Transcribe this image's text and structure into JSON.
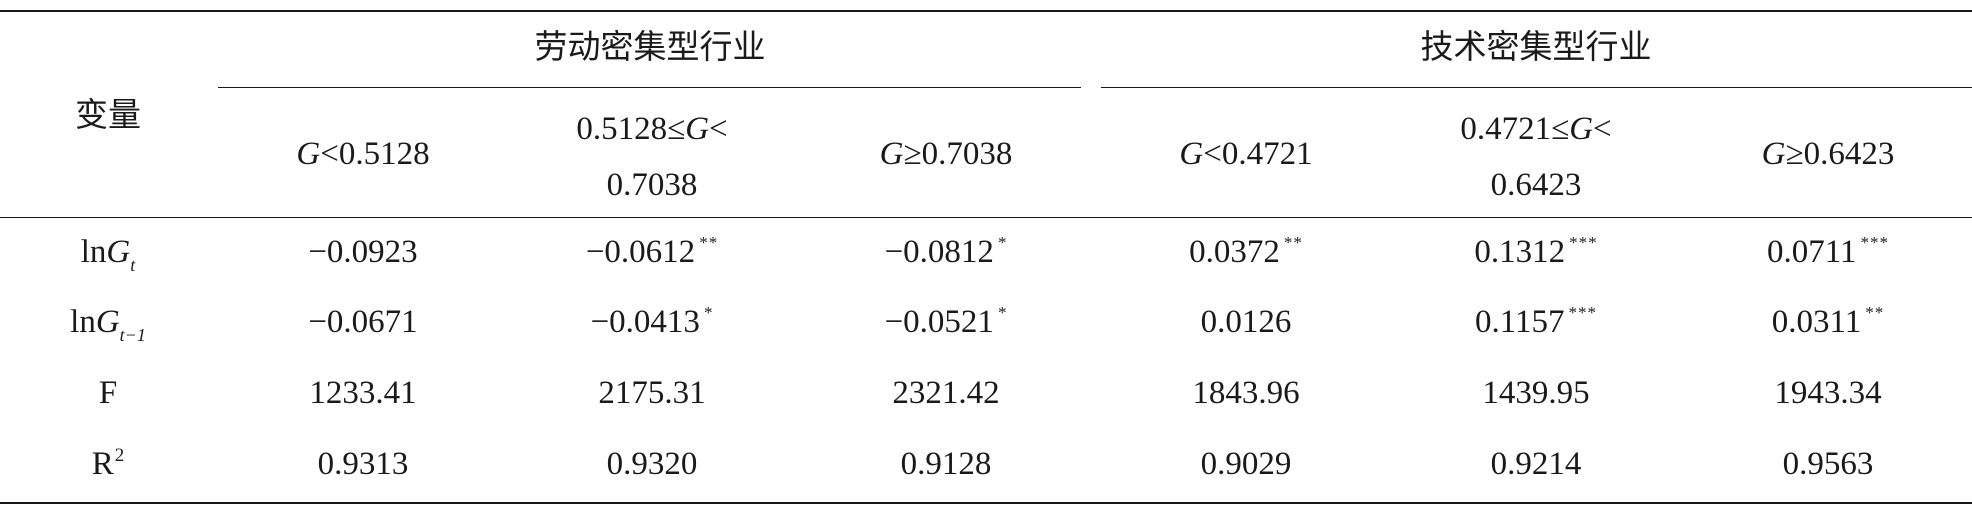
{
  "table": {
    "var_header": "变量",
    "groups": [
      "劳动密集型行业",
      "技术密集型行业"
    ],
    "columns": [
      {
        "l1": "G<0.5128",
        "l2": ""
      },
      {
        "l1": "0.5128≤G<",
        "l2": "0.7038"
      },
      {
        "l1": "G≥0.7038",
        "l2": ""
      },
      {
        "l1": "G<0.4721",
        "l2": ""
      },
      {
        "l1": "0.4721≤G<",
        "l2": "0.6423"
      },
      {
        "l1": "G≥0.6423",
        "l2": ""
      }
    ],
    "rows": [
      {
        "label_base": "lnG",
        "label_sub": "t",
        "cells": [
          {
            "v": "−0.0923",
            "s": ""
          },
          {
            "v": "−0.0612",
            "s": "**"
          },
          {
            "v": "−0.0812",
            "s": "*"
          },
          {
            "v": "0.0372",
            "s": "**"
          },
          {
            "v": "0.1312",
            "s": "***"
          },
          {
            "v": "0.0711",
            "s": "***"
          }
        ]
      },
      {
        "label_base": "lnG",
        "label_sub": "t−1",
        "cells": [
          {
            "v": "−0.0671",
            "s": ""
          },
          {
            "v": "−0.0413",
            "s": "*"
          },
          {
            "v": "−0.0521",
            "s": "*"
          },
          {
            "v": "0.0126",
            "s": ""
          },
          {
            "v": "0.1157",
            "s": "***"
          },
          {
            "v": "0.0311",
            "s": "**"
          }
        ]
      },
      {
        "label_base": "F",
        "label_sub": "",
        "cells": [
          {
            "v": "1233.41",
            "s": ""
          },
          {
            "v": "2175.31",
            "s": ""
          },
          {
            "v": "2321.42",
            "s": ""
          },
          {
            "v": "1843.96",
            "s": ""
          },
          {
            "v": "1439.95",
            "s": ""
          },
          {
            "v": "1943.34",
            "s": ""
          }
        ]
      },
      {
        "label_base": "R",
        "label_sup": "2",
        "cells": [
          {
            "v": "0.9313",
            "s": ""
          },
          {
            "v": "0.9320",
            "s": ""
          },
          {
            "v": "0.9128",
            "s": ""
          },
          {
            "v": "0.9029",
            "s": ""
          },
          {
            "v": "0.9214",
            "s": ""
          },
          {
            "v": "0.9563",
            "s": ""
          }
        ]
      }
    ]
  }
}
